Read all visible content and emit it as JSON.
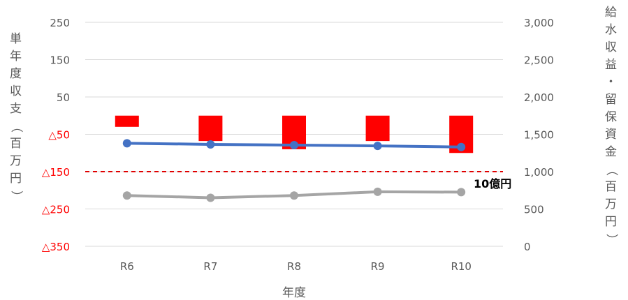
{
  "chart_data": {
    "type": "bar",
    "categories": [
      "R6",
      "R7",
      "R8",
      "R9",
      "R10"
    ],
    "xlabel": "年度",
    "ylabel_left": "単年度収支（百万円）",
    "ylabel_right": "給水収益・留保資金（百万円）",
    "left_axis": {
      "ticks": [
        {
          "value": 250,
          "label": "250",
          "color": "#595959"
        },
        {
          "value": 150,
          "label": "150",
          "color": "#595959"
        },
        {
          "value": 50,
          "label": "50",
          "color": "#595959"
        },
        {
          "value": -50,
          "label": "△50",
          "color": "#ff0000"
        },
        {
          "value": -150,
          "label": "△150",
          "color": "#ff0000"
        },
        {
          "value": -250,
          "label": "△250",
          "color": "#ff0000"
        },
        {
          "value": -350,
          "label": "△350",
          "color": "#ff0000"
        }
      ],
      "ylim": [
        -350,
        250
      ]
    },
    "right_axis": {
      "ticks": [
        {
          "value": 3000,
          "label": "3,000"
        },
        {
          "value": 2500,
          "label": "2,500"
        },
        {
          "value": 2000,
          "label": "2,000"
        },
        {
          "value": 1500,
          "label": "1,500"
        },
        {
          "value": 1000,
          "label": "1,000"
        },
        {
          "value": 500,
          "label": "500"
        },
        {
          "value": 0,
          "label": "0"
        }
      ],
      "ylim": [
        0,
        3000
      ]
    },
    "bars": {
      "axis": "left",
      "color": "#ff0000",
      "values": [
        -30,
        -68,
        -90,
        -68,
        -100
      ]
    },
    "lines": [
      {
        "axis": "right",
        "color": "#4472c4",
        "values": [
          1380,
          1365,
          1355,
          1345,
          1330
        ]
      },
      {
        "axis": "right",
        "color": "#a5a5a5",
        "values": [
          680,
          650,
          680,
          730,
          725
        ]
      }
    ],
    "reference_line": {
      "axis": "right",
      "value": 1000,
      "color": "#e00000",
      "label": "10億円"
    },
    "grid": true
  }
}
